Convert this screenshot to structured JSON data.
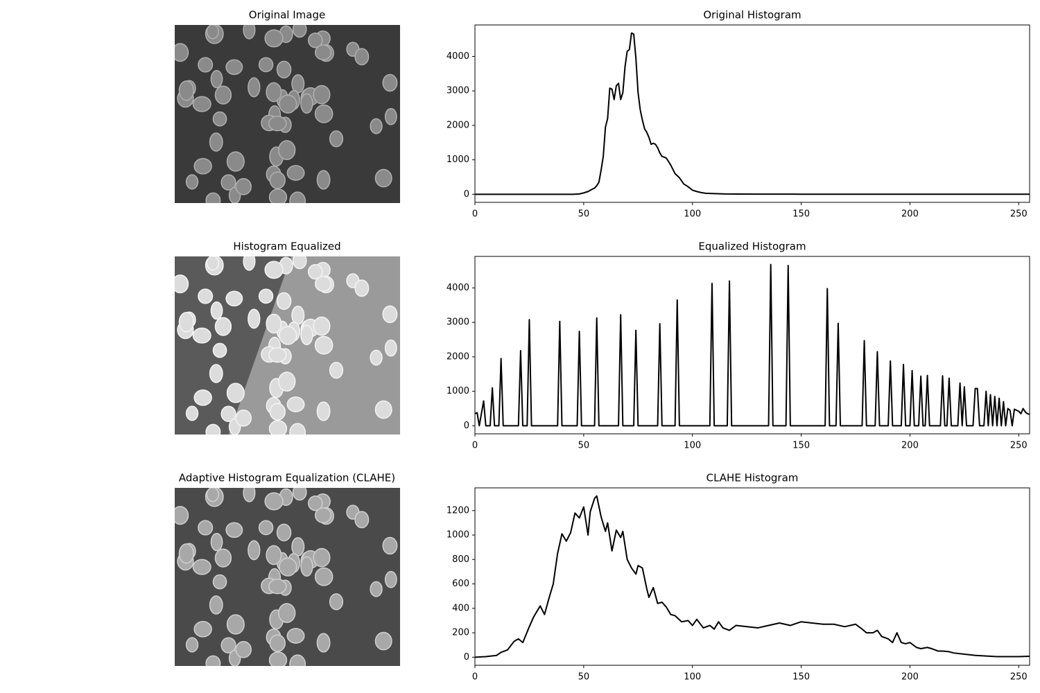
{
  "images": [
    {
      "title": "Original Image"
    },
    {
      "title": "Histogram Equalized"
    },
    {
      "title": "Adaptive Histogram Equalization (CLAHE)"
    }
  ],
  "chart_data": [
    {
      "type": "line",
      "title": "Original Histogram",
      "color": "#000000",
      "x": [
        0,
        45,
        48,
        50,
        52,
        54,
        55,
        56,
        57,
        58,
        59,
        60,
        61,
        62,
        63,
        64,
        65,
        66,
        67,
        68,
        69,
        70,
        71,
        72,
        73,
        74,
        75,
        76,
        77,
        78,
        79,
        80,
        81,
        82,
        83,
        84,
        85,
        86,
        87,
        88,
        89,
        90,
        92,
        94,
        96,
        98,
        100,
        102,
        104,
        106,
        108,
        110,
        115,
        120,
        130,
        140,
        150,
        200,
        255
      ],
      "values": [
        0,
        0,
        10,
        40,
        80,
        150,
        180,
        250,
        350,
        700,
        1100,
        1950,
        2200,
        3080,
        3050,
        2750,
        3150,
        3220,
        2750,
        2950,
        3700,
        4150,
        4200,
        4680,
        4650,
        3950,
        2950,
        2450,
        2150,
        1900,
        1800,
        1650,
        1450,
        1480,
        1450,
        1350,
        1200,
        1100,
        1080,
        1050,
        950,
        850,
        600,
        480,
        300,
        220,
        120,
        80,
        50,
        30,
        25,
        20,
        10,
        8,
        5,
        5,
        3,
        2,
        1
      ],
      "xlim": [
        0,
        255
      ],
      "xticks": [
        0,
        50,
        100,
        150,
        200,
        250
      ],
      "ylim": [
        -234,
        4914
      ],
      "yticks": [
        0,
        1000,
        2000,
        3000,
        4000
      ]
    },
    {
      "type": "line",
      "title": "Equalized Histogram",
      "color": "#000000",
      "x": [
        0,
        1,
        2,
        4,
        5,
        7,
        8,
        9,
        11,
        12,
        13,
        20,
        21,
        22,
        24,
        25,
        26,
        38,
        39,
        40,
        47,
        48,
        49,
        55,
        56,
        57,
        66,
        67,
        68,
        73,
        74,
        75,
        84,
        85,
        86,
        92,
        93,
        94,
        108,
        109,
        110,
        116,
        117,
        118,
        135,
        136,
        137,
        143,
        144,
        145,
        161,
        162,
        163,
        166,
        167,
        168,
        178,
        179,
        180,
        184,
        185,
        186,
        190,
        191,
        192,
        196,
        197,
        198,
        200,
        201,
        202,
        204,
        205,
        206,
        207,
        208,
        209,
        214,
        215,
        216,
        217,
        218,
        219,
        222,
        223,
        224,
        225,
        226,
        229,
        230,
        231,
        232,
        234,
        235,
        236,
        237,
        238,
        239,
        240,
        241,
        242,
        243,
        244,
        245,
        246,
        247,
        248,
        250,
        251,
        252,
        253,
        254,
        255
      ],
      "values": [
        350,
        380,
        0,
        720,
        0,
        0,
        1100,
        0,
        0,
        1950,
        0,
        0,
        2180,
        0,
        0,
        3080,
        0,
        0,
        3030,
        0,
        0,
        2740,
        0,
        0,
        3130,
        0,
        0,
        3220,
        0,
        0,
        2770,
        0,
        0,
        2960,
        0,
        0,
        3650,
        0,
        0,
        4130,
        0,
        0,
        4200,
        0,
        0,
        4680,
        0,
        0,
        4650,
        0,
        0,
        3980,
        0,
        0,
        2970,
        0,
        0,
        2470,
        0,
        0,
        2150,
        0,
        0,
        1880,
        0,
        0,
        1780,
        0,
        0,
        1600,
        0,
        0,
        1440,
        0,
        0,
        1460,
        0,
        0,
        1450,
        0,
        0,
        1380,
        0,
        0,
        1240,
        0,
        1130,
        0,
        0,
        1080,
        1080,
        0,
        0,
        1000,
        0,
        900,
        0,
        850,
        0,
        800,
        0,
        700,
        0,
        500,
        450,
        0,
        480,
        420,
        350,
        500,
        400,
        350,
        330
      ],
      "xlim": [
        0,
        255
      ],
      "xticks": [
        0,
        50,
        100,
        150,
        200,
        250
      ],
      "ylim": [
        -234,
        4914
      ],
      "yticks": [
        0,
        1000,
        2000,
        3000,
        4000
      ]
    },
    {
      "type": "line",
      "title": "CLAHE Histogram",
      "color": "#000000",
      "x": [
        0,
        5,
        10,
        12,
        15,
        18,
        20,
        22,
        25,
        27,
        30,
        32,
        34,
        36,
        38,
        40,
        42,
        44,
        46,
        48,
        50,
        52,
        53,
        55,
        56,
        58,
        60,
        61,
        63,
        65,
        67,
        68,
        70,
        72,
        74,
        75,
        77,
        79,
        80,
        82,
        84,
        86,
        88,
        90,
        92,
        95,
        98,
        100,
        102,
        105,
        108,
        110,
        112,
        114,
        117,
        120,
        125,
        130,
        135,
        140,
        145,
        150,
        155,
        160,
        165,
        170,
        175,
        178,
        180,
        183,
        185,
        187,
        190,
        192,
        194,
        196,
        198,
        200,
        203,
        205,
        208,
        210,
        213,
        215,
        218,
        220,
        225,
        230,
        235,
        240,
        245,
        250,
        255
      ],
      "values": [
        0,
        5,
        15,
        40,
        60,
        130,
        150,
        120,
        250,
        330,
        420,
        350,
        480,
        600,
        850,
        1010,
        950,
        1020,
        1180,
        1140,
        1230,
        1000,
        1190,
        1300,
        1320,
        1150,
        1030,
        1100,
        870,
        1040,
        980,
        1030,
        800,
        730,
        680,
        750,
        730,
        560,
        490,
        570,
        440,
        450,
        410,
        350,
        340,
        290,
        300,
        260,
        310,
        240,
        260,
        230,
        290,
        240,
        220,
        260,
        250,
        240,
        260,
        280,
        260,
        290,
        280,
        270,
        270,
        250,
        270,
        230,
        200,
        200,
        220,
        170,
        150,
        120,
        200,
        120,
        110,
        120,
        80,
        70,
        80,
        70,
        50,
        50,
        45,
        35,
        25,
        15,
        10,
        5,
        5,
        5,
        8
      ],
      "xlim": [
        0,
        255
      ],
      "xticks": [
        0,
        50,
        100,
        150,
        200,
        250
      ],
      "ylim": [
        -66,
        1386
      ],
      "yticks": [
        0,
        200,
        400,
        600,
        800,
        1000,
        1200
      ]
    }
  ]
}
